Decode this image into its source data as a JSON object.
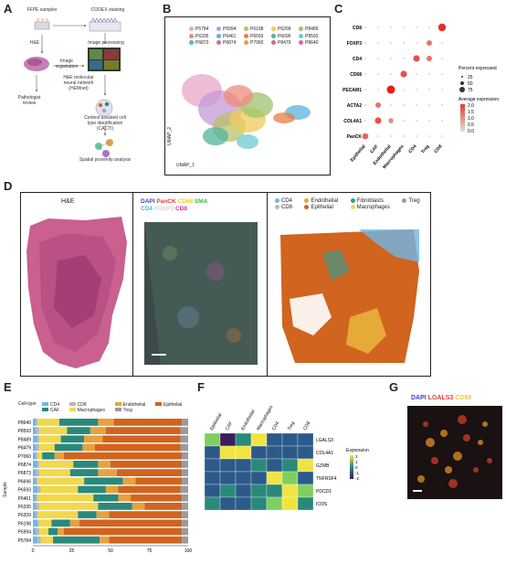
{
  "panels": {
    "a": {
      "letter": "A",
      "labels": {
        "ffpe": "FFPE samples",
        "codex": "CODEX staining",
        "he": "H&E",
        "image_reg": "Image\nregistration",
        "image_proc": "Image processing",
        "hemnet": "H&E molecular\nneural network\n(HEMnet)",
        "pathologist": "Pathologist\nreview",
        "cacti": "Context assisted cell\ntype identification\n(CACTI)",
        "spatial": "Spatial proximity\nanalysis"
      }
    },
    "b": {
      "letter": "B",
      "umap_x": "UMAP_1",
      "umap_y": "UMAP_2",
      "samples": [
        {
          "name": "P5784",
          "color": "#e8a6c9"
        },
        {
          "name": "P5994",
          "color": "#c49bd6"
        },
        {
          "name": "P6198",
          "color": "#b8c26a"
        },
        {
          "name": "P6209",
          "color": "#f0c95c"
        },
        {
          "name": "P8489",
          "color": "#9ec36d"
        },
        {
          "name": "P6335",
          "color": "#f08b7a"
        },
        {
          "name": "P6461",
          "color": "#5ab4e0"
        },
        {
          "name": "P6593",
          "color": "#e77f40"
        },
        {
          "name": "P6696",
          "color": "#52b39b"
        },
        {
          "name": "P8593",
          "color": "#6bcbd6"
        },
        {
          "name": "P6873",
          "color": "#40c1c9"
        },
        {
          "name": "P6874",
          "color": "#d46ea8"
        },
        {
          "name": "P7060",
          "color": "#d9a44b"
        },
        {
          "name": "P8479",
          "color": "#b8739e"
        },
        {
          "name": "P8640",
          "color": "#e45fa4"
        }
      ]
    },
    "c": {
      "letter": "C",
      "genes": [
        "CD8",
        "FOXP3",
        "CD4",
        "CD68",
        "PECAM1",
        "ACTA2",
        "COL4A1",
        "PanCK"
      ],
      "celltypes": [
        "Epithelial",
        "CAF",
        "Endothelial",
        "Macrophages",
        "CD4",
        "Treg",
        "CD8"
      ],
      "size_legend_title": "Percent expressed",
      "size_values": [
        "25",
        "50",
        "75"
      ],
      "color_legend_title": "Average expression",
      "color_ticks": [
        "2.0",
        "1.5",
        "1.0",
        "0.5",
        "0.0"
      ],
      "highlights": [
        {
          "gene": "CD8",
          "celltype": "CD8",
          "level": 0.9
        },
        {
          "gene": "FOXP3",
          "celltype": "Treg",
          "level": 0.5
        },
        {
          "gene": "CD4",
          "celltype": "CD4",
          "level": 0.7
        },
        {
          "gene": "CD4",
          "celltype": "Treg",
          "level": 0.5
        },
        {
          "gene": "CD68",
          "celltype": "Macrophages",
          "level": 0.7
        },
        {
          "gene": "PECAM1",
          "celltype": "Endothelial",
          "level": 1.0
        },
        {
          "gene": "ACTA2",
          "celltype": "CAF",
          "level": 0.5
        },
        {
          "gene": "COL4A1",
          "celltype": "CAF",
          "level": 0.7
        },
        {
          "gene": "COL4A1",
          "celltype": "Endothelial",
          "level": 0.4
        },
        {
          "gene": "PanCK",
          "celltype": "Epithelial",
          "level": 0.6
        }
      ]
    },
    "d": {
      "letter": "D",
      "he_title": "H&E",
      "codex_markers": [
        {
          "text": "DAPI",
          "color": "#3a3fd0"
        },
        {
          "text": "PanCK",
          "color": "#e33a3a"
        },
        {
          "text": "CD68",
          "color": "#e8d020"
        },
        {
          "text": "SMA",
          "color": "#3cb848"
        },
        {
          "text": "CD4",
          "color": "#39c0d8"
        },
        {
          "text": "FOXP3",
          "color": "#f5f5f5"
        },
        {
          "text": "CD8",
          "color": "#d52f9c"
        }
      ],
      "celltype_legend": [
        {
          "text": "CD4",
          "color": "#6fb7e8"
        },
        {
          "text": "Endothelial",
          "color": "#e8a23a"
        },
        {
          "text": "Fibroblasts",
          "color": "#2aa198"
        },
        {
          "text": "Treg",
          "color": "#9b9b9b"
        },
        {
          "text": "CD8",
          "color": "#b8b8b8"
        },
        {
          "text": "Epithelial",
          "color": "#d1641e"
        },
        {
          "text": "Macrophages",
          "color": "#f2d84a"
        }
      ]
    },
    "e": {
      "letter": "E",
      "legend_title": "Cell-type",
      "legend": [
        {
          "text": "CD4",
          "color": "#6fb7e8"
        },
        {
          "text": "CD8",
          "color": "#b8b8b8"
        },
        {
          "text": "Endothelial",
          "color": "#e8a23a"
        },
        {
          "text": "Epithelial",
          "color": "#d1641e"
        },
        {
          "text": "CAF",
          "color": "#2a8a7a"
        },
        {
          "text": "Macrophages",
          "color": "#f2d84a"
        },
        {
          "text": "Treg",
          "color": "#9b9b9b"
        }
      ],
      "ylabel": "Sample",
      "xticks": [
        "0",
        "25",
        "50",
        "75",
        "100"
      ]
    },
    "f": {
      "letter": "F",
      "genes": [
        "LGALS3",
        "COL4A1",
        "GZMB",
        "TNFRSF4",
        "PDCD1",
        "ICOS"
      ],
      "celltypes": [
        "Epithelial",
        "CAF",
        "Endothelial",
        "Macrophages",
        "CD4",
        "Treg",
        "CD8"
      ],
      "legend_title": "Expression",
      "legend_ticks": [
        "2",
        "1",
        "0",
        "-1",
        "-2"
      ]
    },
    "g": {
      "letter": "G",
      "markers": [
        {
          "text": "DAPI",
          "color": "#3a3fd0"
        },
        {
          "text": "LGALS3",
          "color": "#e33a3a"
        },
        {
          "text": "CD68",
          "color": "#f0c93a"
        }
      ]
    }
  },
  "chart_data": [
    {
      "type": "bar",
      "orientation": "horizontal-stacked",
      "categories": [
        "P8640",
        "P8593",
        "P8489",
        "P8479",
        "P7060",
        "P6874",
        "P6873",
        "P6696",
        "P6593",
        "P6461",
        "P6335",
        "P6209",
        "P6198",
        "P5994",
        "P5784"
      ],
      "series": [
        {
          "name": "CD4",
          "color": "#6fb7e8",
          "values": [
            2,
            2,
            3,
            2,
            2,
            3,
            2,
            2,
            3,
            2,
            2,
            2,
            3,
            2,
            3
          ]
        },
        {
          "name": "CD8",
          "color": "#b8b8b8",
          "values": [
            1,
            2,
            1,
            2,
            1,
            1,
            2,
            1,
            2,
            1,
            2,
            1,
            1,
            2,
            2
          ]
        },
        {
          "name": "Macrophages",
          "color": "#f2d84a",
          "values": [
            14,
            18,
            14,
            10,
            3,
            22,
            20,
            30,
            24,
            36,
            38,
            26,
            8,
            6,
            8
          ]
        },
        {
          "name": "CAF",
          "color": "#2a8a7a",
          "values": [
            25,
            15,
            15,
            18,
            8,
            16,
            18,
            25,
            18,
            16,
            22,
            12,
            12,
            6,
            30
          ]
        },
        {
          "name": "Endothelial",
          "color": "#e8a23a",
          "values": [
            10,
            10,
            12,
            8,
            6,
            8,
            12,
            8,
            8,
            8,
            8,
            8,
            6,
            4,
            6
          ]
        },
        {
          "name": "Epithelial",
          "color": "#d1641e",
          "values": [
            44,
            48,
            50,
            55,
            76,
            46,
            42,
            30,
            40,
            33,
            24,
            47,
            66,
            76,
            47
          ]
        },
        {
          "name": "Treg",
          "color": "#9b9b9b",
          "values": [
            4,
            5,
            5,
            5,
            4,
            4,
            4,
            4,
            5,
            4,
            4,
            4,
            4,
            4,
            4
          ]
        }
      ],
      "xlim": [
        0,
        100
      ],
      "ylabel": "Sample"
    },
    {
      "type": "heatmap",
      "rows": [
        "LGALS3",
        "COL4A1",
        "GZMB",
        "TNFRSF4",
        "PDCD1",
        "ICOS"
      ],
      "cols": [
        "Epithelial",
        "CAF",
        "Endothelial",
        "Macrophages",
        "CD4",
        "Treg",
        "CD8"
      ],
      "values": [
        [
          0.5,
          -1.8,
          0.3,
          1.5,
          -0.8,
          -0.5,
          -0.8
        ],
        [
          -0.6,
          1.2,
          1.4,
          -0.6,
          -0.6,
          -0.6,
          -0.6
        ],
        [
          -0.5,
          -0.4,
          -0.4,
          -0.3,
          -0.5,
          -0.3,
          2.0
        ],
        [
          -0.6,
          -0.5,
          -0.4,
          -0.5,
          1.6,
          1.0,
          -0.4
        ],
        [
          -0.4,
          -0.3,
          -0.4,
          -0.3,
          0.0,
          2.2,
          0.8
        ],
        [
          -0.3,
          -0.4,
          -0.4,
          -0.3,
          0.4,
          2.0,
          0.2
        ]
      ]
    }
  ]
}
